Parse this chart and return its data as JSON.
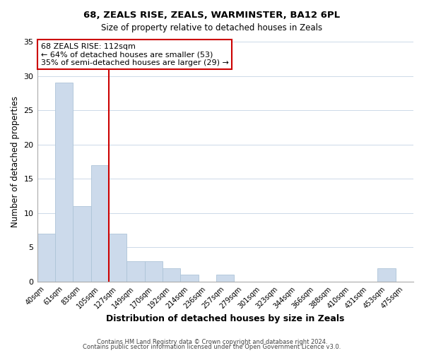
{
  "title_line1": "68, ZEALS RISE, ZEALS, WARMINSTER, BA12 6PL",
  "title_line2": "Size of property relative to detached houses in Zeals",
  "xlabel": "Distribution of detached houses by size in Zeals",
  "ylabel": "Number of detached properties",
  "bar_labels": [
    "40sqm",
    "61sqm",
    "83sqm",
    "105sqm",
    "127sqm",
    "149sqm",
    "170sqm",
    "192sqm",
    "214sqm",
    "236sqm",
    "257sqm",
    "279sqm",
    "301sqm",
    "323sqm",
    "344sqm",
    "366sqm",
    "388sqm",
    "410sqm",
    "431sqm",
    "453sqm",
    "475sqm"
  ],
  "bar_values": [
    7,
    29,
    11,
    17,
    7,
    3,
    3,
    2,
    1,
    0,
    1,
    0,
    0,
    0,
    0,
    0,
    0,
    0,
    0,
    2,
    0
  ],
  "bar_color": "#ccdaeb",
  "bar_edgecolor": "#adc4d8",
  "ref_line_x": 3.5,
  "ref_line_color": "#cc0000",
  "ylim": [
    0,
    35
  ],
  "yticks": [
    0,
    5,
    10,
    15,
    20,
    25,
    30,
    35
  ],
  "annotation_text": "68 ZEALS RISE: 112sqm\n← 64% of detached houses are smaller (53)\n35% of semi-detached houses are larger (29) →",
  "annotation_box_edgecolor": "#cc0000",
  "annotation_box_facecolor": "#ffffff",
  "footer_line1": "Contains HM Land Registry data © Crown copyright and database right 2024.",
  "footer_line2": "Contains public sector information licensed under the Open Government Licence v3.0.",
  "background_color": "#ffffff",
  "grid_color": "#ccd9e8"
}
